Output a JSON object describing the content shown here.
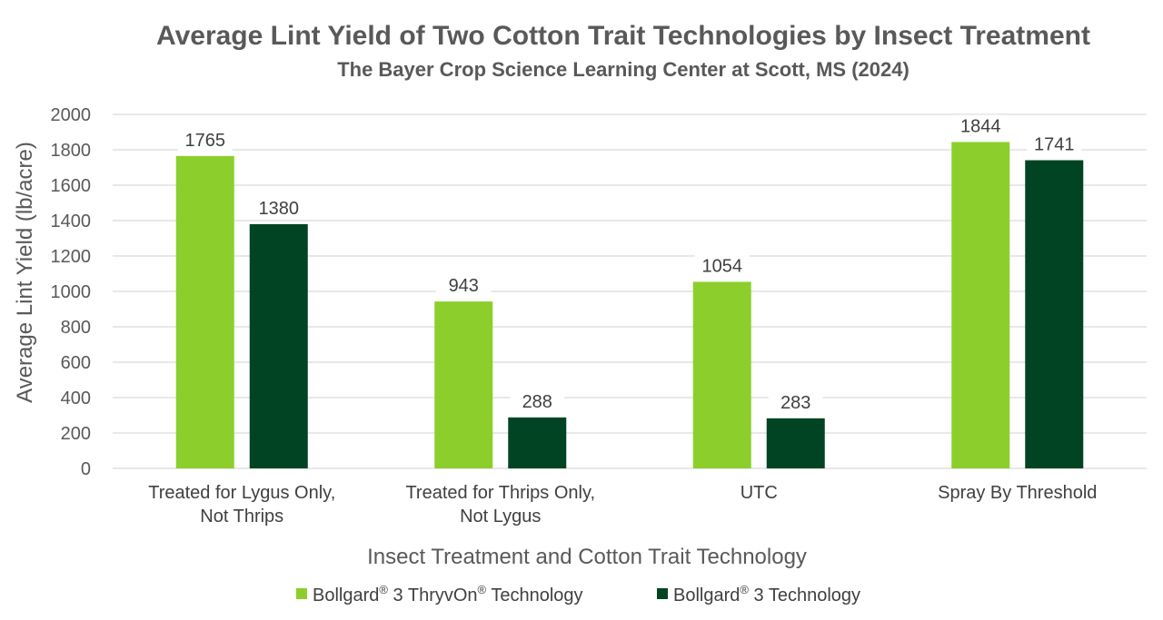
{
  "chart_data": {
    "type": "bar",
    "title": "Average Lint Yield of Two Cotton Trait Technologies by Insect Treatment",
    "subtitle": "The Bayer Crop Science Learning Center at Scott, MS (2024)",
    "xlabel": "Insect Treatment and Cotton Trait Technology",
    "ylabel": "Average Lint Yield (lb/acre)",
    "ylim": [
      0,
      2000
    ],
    "yticks": [
      0,
      200,
      400,
      600,
      800,
      1000,
      1200,
      1400,
      1600,
      1800,
      2000
    ],
    "grid": true,
    "legend_position": "bottom",
    "categories": [
      [
        "Treated for Lygus Only,",
        "Not Thrips"
      ],
      [
        "Treated for Thrips Only,",
        "Not Lygus"
      ],
      [
        "UTC"
      ],
      [
        "Spray By Threshold"
      ]
    ],
    "series": [
      {
        "name": "Bollgard® 3 ThryvOn® Technology",
        "color": "#8ccf2c",
        "values": [
          1765,
          943,
          1054,
          1844
        ]
      },
      {
        "name": "Bollgard® 3 Technology",
        "color": "#004423",
        "values": [
          1380,
          288,
          283,
          1741
        ]
      }
    ]
  },
  "legend_labels": [
    {
      "pre": "Bollgard",
      "sup1": "®",
      "mid": " 3 ThryvOn",
      "sup2": "®",
      "post": " Technology"
    },
    {
      "pre": "Bollgard",
      "sup1": "®",
      "mid": " 3 Technology",
      "sup2": "",
      "post": ""
    }
  ]
}
